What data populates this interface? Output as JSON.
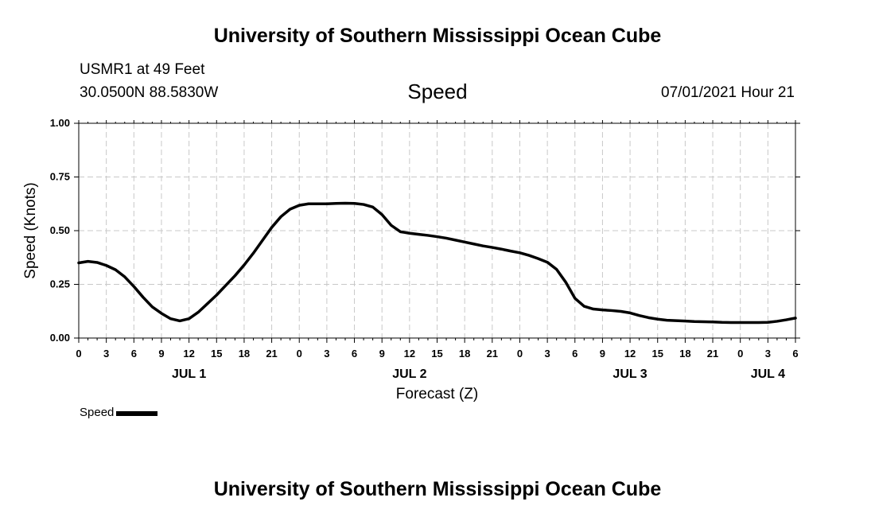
{
  "header": {
    "title": "University of Southern Mississippi Ocean Cube",
    "station": "USMR1 at 49 Feet",
    "coords": "30.0500N  88.5830W",
    "variable": "Speed",
    "datetime": "07/01/2021 Hour 21"
  },
  "footer": {
    "title": "University of Southern Mississippi Ocean Cube"
  },
  "legend": {
    "label": "Speed",
    "color": "#000000"
  },
  "chart_data": {
    "type": "line",
    "title": "Speed",
    "xlabel": "Forecast (Z)",
    "ylabel": "Speed (Knots)",
    "ylim": [
      0,
      1
    ],
    "y_ticks": [
      "0.00",
      "0.25",
      "0.50",
      "0.75",
      "1.00"
    ],
    "xlim_hours": [
      0,
      78
    ],
    "x_tick_labels": [
      "0",
      "3",
      "6",
      "9",
      "12",
      "15",
      "18",
      "21",
      "0",
      "3",
      "6",
      "9",
      "12",
      "15",
      "18",
      "21",
      "0",
      "3",
      "6",
      "9",
      "12",
      "15",
      "18",
      "21",
      "0",
      "3",
      "6"
    ],
    "date_labels": [
      {
        "label": "JUL 1",
        "hour": 12
      },
      {
        "label": "JUL 2",
        "hour": 36
      },
      {
        "label": "JUL 3",
        "hour": 60
      },
      {
        "label": "JUL 4",
        "hour": 75
      }
    ],
    "grid": true,
    "series": [
      {
        "name": "Speed",
        "color": "#000000",
        "x": [
          0,
          1,
          2,
          3,
          4,
          5,
          6,
          7,
          8,
          9,
          10,
          11,
          12,
          13,
          14,
          15,
          16,
          17,
          18,
          19,
          20,
          21,
          22,
          23,
          24,
          25,
          26,
          27,
          28,
          29,
          30,
          31,
          32,
          33,
          34,
          35,
          36,
          37,
          38,
          39,
          40,
          41,
          42,
          43,
          44,
          45,
          46,
          47,
          48,
          49,
          50,
          51,
          52,
          53,
          54,
          55,
          56,
          57,
          58,
          59,
          60,
          61,
          62,
          63,
          64,
          65,
          66,
          67,
          68,
          69,
          70,
          71,
          72,
          73,
          74,
          75,
          76,
          77,
          78
        ],
        "values": [
          0.35,
          0.357,
          0.352,
          0.338,
          0.318,
          0.285,
          0.24,
          0.19,
          0.145,
          0.115,
          0.09,
          0.08,
          0.09,
          0.12,
          0.16,
          0.2,
          0.245,
          0.29,
          0.34,
          0.395,
          0.455,
          0.515,
          0.565,
          0.6,
          0.618,
          0.625,
          0.625,
          0.625,
          0.627,
          0.628,
          0.627,
          0.622,
          0.61,
          0.575,
          0.525,
          0.495,
          0.488,
          0.483,
          0.478,
          0.472,
          0.465,
          0.456,
          0.447,
          0.438,
          0.429,
          0.422,
          0.414,
          0.405,
          0.397,
          0.385,
          0.37,
          0.353,
          0.32,
          0.26,
          0.185,
          0.148,
          0.135,
          0.131,
          0.128,
          0.124,
          0.117,
          0.105,
          0.095,
          0.088,
          0.083,
          0.081,
          0.079,
          0.077,
          0.076,
          0.075,
          0.073,
          0.072,
          0.072,
          0.072,
          0.072,
          0.073,
          0.078,
          0.085,
          0.093
        ]
      }
    ]
  }
}
